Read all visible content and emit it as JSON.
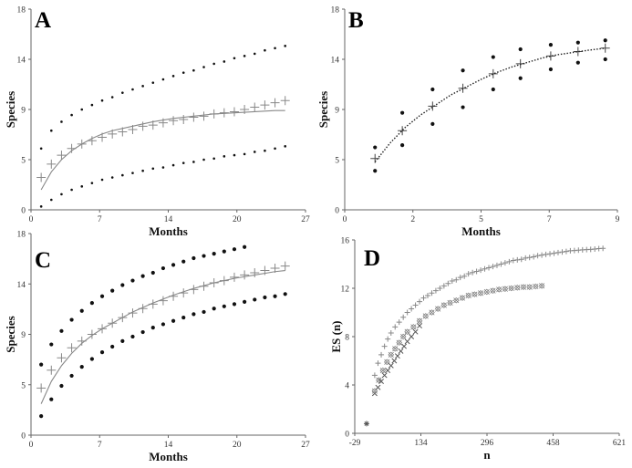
{
  "chart_data": [
    {
      "panel": "A",
      "type": "scatter",
      "xlabel": "Months",
      "ylabel": "Species",
      "xlim": [
        0,
        27
      ],
      "ylim": [
        0,
        18
      ],
      "xticks": [
        "0",
        "7",
        "14",
        "20",
        "27"
      ],
      "yticks": [
        "0",
        "5",
        "9",
        "14",
        "18"
      ],
      "series": [
        {
          "marker": "plus",
          "x": [
            1,
            2,
            3,
            4,
            5,
            6,
            7,
            8,
            9,
            10,
            11,
            12,
            13,
            14,
            15,
            16,
            17,
            18,
            19,
            20,
            21,
            22,
            23,
            24,
            25
          ],
          "y": [
            2.9,
            4.1,
            4.9,
            5.5,
            5.9,
            6.2,
            6.5,
            6.8,
            7.0,
            7.2,
            7.5,
            7.6,
            7.8,
            8.0,
            8.1,
            8.3,
            8.4,
            8.6,
            8.7,
            8.8,
            9.0,
            9.2,
            9.4,
            9.6,
            9.8
          ]
        },
        {
          "marker": "dot",
          "x": [
            1,
            2,
            3,
            4,
            5,
            6,
            7,
            8,
            9,
            10,
            11,
            12,
            13,
            14,
            15,
            16,
            17,
            18,
            19,
            20,
            21,
            22,
            23,
            24,
            25
          ],
          "y": [
            5.5,
            7.1,
            7.9,
            8.5,
            9.0,
            9.4,
            9.8,
            10.1,
            10.5,
            10.8,
            11.1,
            11.4,
            11.7,
            12.0,
            12.3,
            12.5,
            12.8,
            13.1,
            13.3,
            13.6,
            13.8,
            14.0,
            14.3,
            14.5,
            14.7
          ]
        },
        {
          "marker": "dot",
          "x": [
            1,
            2,
            3,
            4,
            5,
            6,
            7,
            8,
            9,
            10,
            11,
            12,
            13,
            14,
            15,
            16,
            17,
            18,
            19,
            20,
            21,
            22,
            23,
            24,
            25
          ],
          "y": [
            0.3,
            0.9,
            1.4,
            1.8,
            2.1,
            2.4,
            2.7,
            2.9,
            3.1,
            3.3,
            3.5,
            3.7,
            3.8,
            4.0,
            4.2,
            4.3,
            4.5,
            4.6,
            4.8,
            4.9,
            5.0,
            5.2,
            5.3,
            5.5,
            5.7
          ]
        },
        {
          "marker": "curve",
          "x": [
            1,
            2,
            3,
            4,
            5,
            6,
            7,
            8,
            10,
            12,
            14,
            16,
            18,
            20,
            22,
            24,
            25
          ],
          "y": [
            1.8,
            3.4,
            4.5,
            5.3,
            5.9,
            6.4,
            6.8,
            7.1,
            7.5,
            7.9,
            8.2,
            8.4,
            8.6,
            8.7,
            8.8,
            8.9,
            8.9
          ]
        }
      ]
    },
    {
      "panel": "B",
      "type": "scatter",
      "xlabel": "Months",
      "ylabel": "Species",
      "xlim": [
        0,
        9
      ],
      "ylim": [
        0,
        18
      ],
      "xticks": [
        "0",
        "2",
        "5",
        "7",
        "9"
      ],
      "yticks": [
        "0",
        "5",
        "9",
        "14",
        "18"
      ],
      "series": [
        {
          "marker": "plus",
          "x": [
            1,
            1.9,
            2.9,
            3.9,
            4.9,
            5.8,
            6.8,
            7.7,
            8.6
          ],
          "y": [
            4.6,
            7.1,
            9.3,
            10.9,
            12.2,
            13.1,
            13.8,
            14.2,
            14.5
          ]
        },
        {
          "marker": "dot",
          "x": [
            1,
            1.9,
            2.9,
            3.9,
            4.9,
            5.8,
            6.8,
            7.7,
            8.6
          ],
          "y": [
            5.6,
            8.7,
            10.8,
            12.5,
            13.7,
            14.4,
            14.8,
            15.0,
            15.2
          ]
        },
        {
          "marker": "dot",
          "x": [
            1,
            1.9,
            2.9,
            3.9,
            4.9,
            5.8,
            6.8,
            7.7,
            8.6
          ],
          "y": [
            3.5,
            5.8,
            7.7,
            9.2,
            10.8,
            11.8,
            12.6,
            13.2,
            13.5
          ]
        },
        {
          "marker": "dotted-curve",
          "x": [
            1,
            1.5,
            2,
            2.5,
            3,
            3.5,
            4,
            4.5,
            5,
            5.5,
            6,
            6.5,
            7,
            7.5,
            8,
            8.6
          ],
          "y": [
            4.3,
            6.0,
            7.4,
            8.5,
            9.4,
            10.3,
            11.0,
            11.7,
            12.3,
            12.8,
            13.2,
            13.6,
            13.9,
            14.1,
            14.3,
            14.5
          ]
        }
      ]
    },
    {
      "panel": "C",
      "type": "scatter",
      "xlabel": "Months",
      "ylabel": "Species",
      "xlim": [
        0,
        27
      ],
      "ylim": [
        0,
        18
      ],
      "xticks": [
        "0",
        "7",
        "14",
        "20",
        "27"
      ],
      "yticks": [
        "0",
        "5",
        "9",
        "14",
        "18"
      ],
      "series": [
        {
          "marker": "plus",
          "x": [
            1,
            2,
            3,
            4,
            5,
            6,
            7,
            8,
            9,
            10,
            11,
            12,
            13,
            14,
            15,
            16,
            17,
            18,
            19,
            20,
            21,
            22,
            23,
            24,
            25
          ],
          "y": [
            4.2,
            5.8,
            6.9,
            7.8,
            8.4,
            9.0,
            9.5,
            10.0,
            10.5,
            10.9,
            11.3,
            11.7,
            12.0,
            12.4,
            12.7,
            13.0,
            13.3,
            13.6,
            13.8,
            14.1,
            14.3,
            14.5,
            14.7,
            14.9,
            15.1
          ]
        },
        {
          "marker": "dot",
          "x": [
            1,
            2,
            3,
            4,
            5,
            6,
            7,
            8,
            9,
            10,
            11,
            12,
            13,
            14,
            15,
            16,
            17,
            18,
            19,
            20,
            21
          ],
          "y": [
            6.3,
            8.1,
            9.3,
            10.3,
            11.1,
            11.8,
            12.4,
            12.9,
            13.4,
            13.8,
            14.2,
            14.5,
            14.9,
            15.2,
            15.5,
            15.8,
            16.0,
            16.2,
            16.4,
            16.6,
            16.8
          ]
        },
        {
          "marker": "dot",
          "x": [
            1,
            2,
            3,
            4,
            5,
            6,
            7,
            8,
            9,
            10,
            11,
            12,
            13,
            14,
            15,
            16,
            17,
            18,
            19,
            20,
            21,
            22,
            23,
            24,
            25
          ],
          "y": [
            1.7,
            3.2,
            4.4,
            5.3,
            6.1,
            6.8,
            7.4,
            7.9,
            8.4,
            8.8,
            9.2,
            9.6,
            9.9,
            10.2,
            10.5,
            10.8,
            11.0,
            11.3,
            11.5,
            11.7,
            11.9,
            12.1,
            12.3,
            12.4,
            12.6
          ]
        },
        {
          "marker": "curve",
          "x": [
            1,
            2,
            3,
            4,
            5,
            6,
            7,
            8,
            10,
            12,
            14,
            16,
            18,
            20,
            22,
            24,
            25
          ],
          "y": [
            2.8,
            4.8,
            6.2,
            7.3,
            8.2,
            8.9,
            9.5,
            10.0,
            11.0,
            11.8,
            12.5,
            13.1,
            13.6,
            14.0,
            14.3,
            14.6,
            14.7
          ]
        }
      ]
    },
    {
      "panel": "D",
      "type": "scatter",
      "xlabel": "n",
      "ylabel": "ES (n)",
      "xlim": [
        -29,
        620
      ],
      "ylim": [
        0,
        16
      ],
      "xticks": [
        "-29",
        "134",
        "296",
        "458",
        "621"
      ],
      "yticks": [
        "0",
        "4",
        "8",
        "12",
        "16"
      ],
      "series": [
        {
          "marker": "star",
          "x": [
            0
          ],
          "y": [
            0.8
          ]
        },
        {
          "marker": "x",
          "x": [
            20,
            28,
            36,
            44,
            52,
            60,
            68,
            76,
            84,
            92,
            100,
            110,
            120,
            130
          ],
          "y": [
            3.3,
            3.8,
            4.3,
            4.8,
            5.2,
            5.6,
            6.0,
            6.4,
            6.8,
            7.2,
            7.6,
            8.0,
            8.4,
            8.9
          ]
        },
        {
          "marker": "diamond-x",
          "x": [
            20,
            30,
            40,
            50,
            60,
            70,
            80,
            90,
            100,
            115,
            130,
            145,
            160,
            175,
            190,
            205,
            220,
            235,
            250,
            265,
            280,
            295,
            310,
            325,
            340,
            355,
            370,
            385,
            400,
            415,
            430
          ],
          "y": [
            3.5,
            4.4,
            5.2,
            5.9,
            6.5,
            7.0,
            7.5,
            8.0,
            8.4,
            8.8,
            9.3,
            9.7,
            10.0,
            10.3,
            10.6,
            10.8,
            11.0,
            11.2,
            11.4,
            11.5,
            11.6,
            11.7,
            11.8,
            11.9,
            11.95,
            12.0,
            12.05,
            12.1,
            12.1,
            12.15,
            12.2
          ]
        },
        {
          "marker": "plus",
          "x": [
            20,
            28,
            36,
            44,
            52,
            60,
            70,
            80,
            90,
            100,
            110,
            120,
            130,
            140,
            150,
            160,
            170,
            180,
            190,
            200,
            210,
            220,
            230,
            240,
            250,
            260,
            270,
            280,
            290,
            300,
            310,
            320,
            330,
            340,
            350,
            360,
            370,
            380,
            390,
            400,
            410,
            420,
            430,
            440,
            450,
            460,
            470,
            480,
            490,
            500,
            510,
            520,
            530,
            540,
            550,
            560,
            570,
            580
          ],
          "y": [
            4.8,
            5.8,
            6.5,
            7.2,
            7.8,
            8.3,
            8.8,
            9.2,
            9.6,
            10.0,
            10.3,
            10.6,
            10.9,
            11.2,
            11.4,
            11.6,
            11.8,
            12.0,
            12.2,
            12.4,
            12.6,
            12.7,
            12.9,
            13.0,
            13.2,
            13.3,
            13.4,
            13.5,
            13.6,
            13.7,
            13.8,
            13.9,
            14.0,
            14.1,
            14.2,
            14.3,
            14.35,
            14.4,
            14.5,
            14.55,
            14.6,
            14.7,
            14.75,
            14.8,
            14.85,
            14.9,
            14.95,
            15.0,
            15.05,
            15.1,
            15.12,
            15.15,
            15.18,
            15.2,
            15.22,
            15.25,
            15.28,
            15.3
          ]
        }
      ]
    }
  ]
}
